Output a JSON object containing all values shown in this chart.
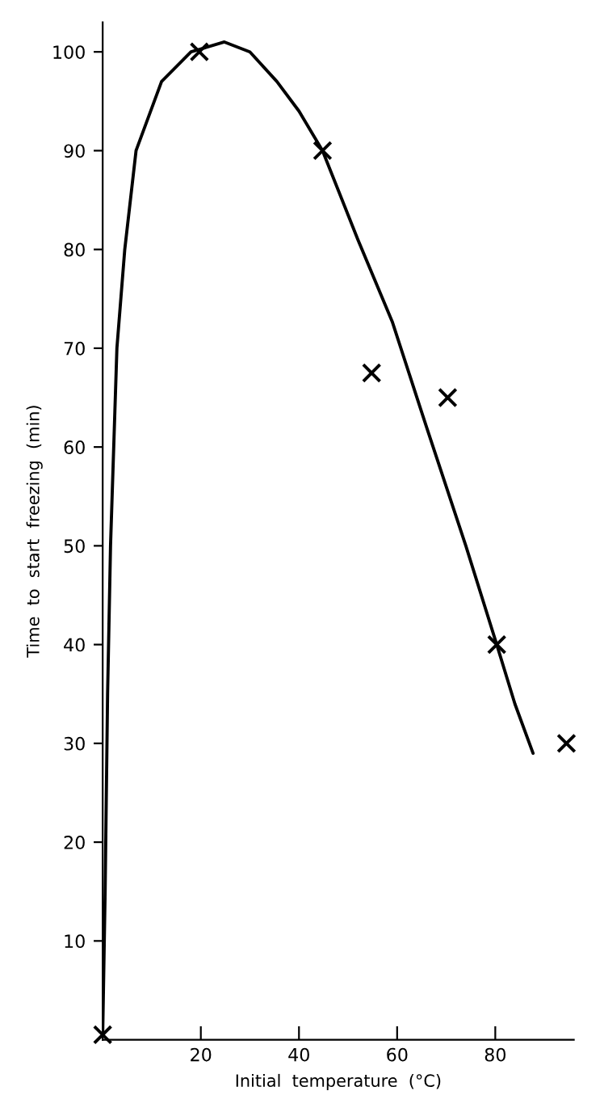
{
  "chart_data": {
    "type": "scatter",
    "xlabel": "Initial  temperature  (°C)",
    "ylabel": "Time  to  start  freezing  (min)",
    "xlim": [
      0,
      96
    ],
    "ylim": [
      0,
      103
    ],
    "xticks": [
      20,
      40,
      60,
      80
    ],
    "yticks": [
      10,
      20,
      30,
      40,
      50,
      60,
      70,
      80,
      90,
      100
    ],
    "grid": false,
    "series": [
      {
        "color": "#000000",
        "marker": "cross",
        "x": [
          0,
          19.7,
          44.8,
          54.8,
          70.3,
          80.3,
          94.5
        ],
        "values": [
          0.5,
          100,
          90,
          67.5,
          65,
          40,
          30
        ]
      },
      {
        "type": "line",
        "color": "#000000",
        "marker": "none",
        "line_style": "solid",
        "x": [
          0,
          0.5,
          1,
          1.6,
          2.9,
          4.5,
          6.8,
          12,
          18,
          24.8,
          30,
          35.5,
          40,
          44.8,
          52,
          59,
          66,
          74,
          80.3,
          84,
          87.7
        ],
        "values": [
          0.5,
          15,
          35,
          50,
          70,
          80,
          90,
          97,
          100,
          101,
          100,
          97,
          94,
          90,
          81,
          72.7,
          62,
          50,
          40,
          34,
          29
        ]
      }
    ]
  }
}
